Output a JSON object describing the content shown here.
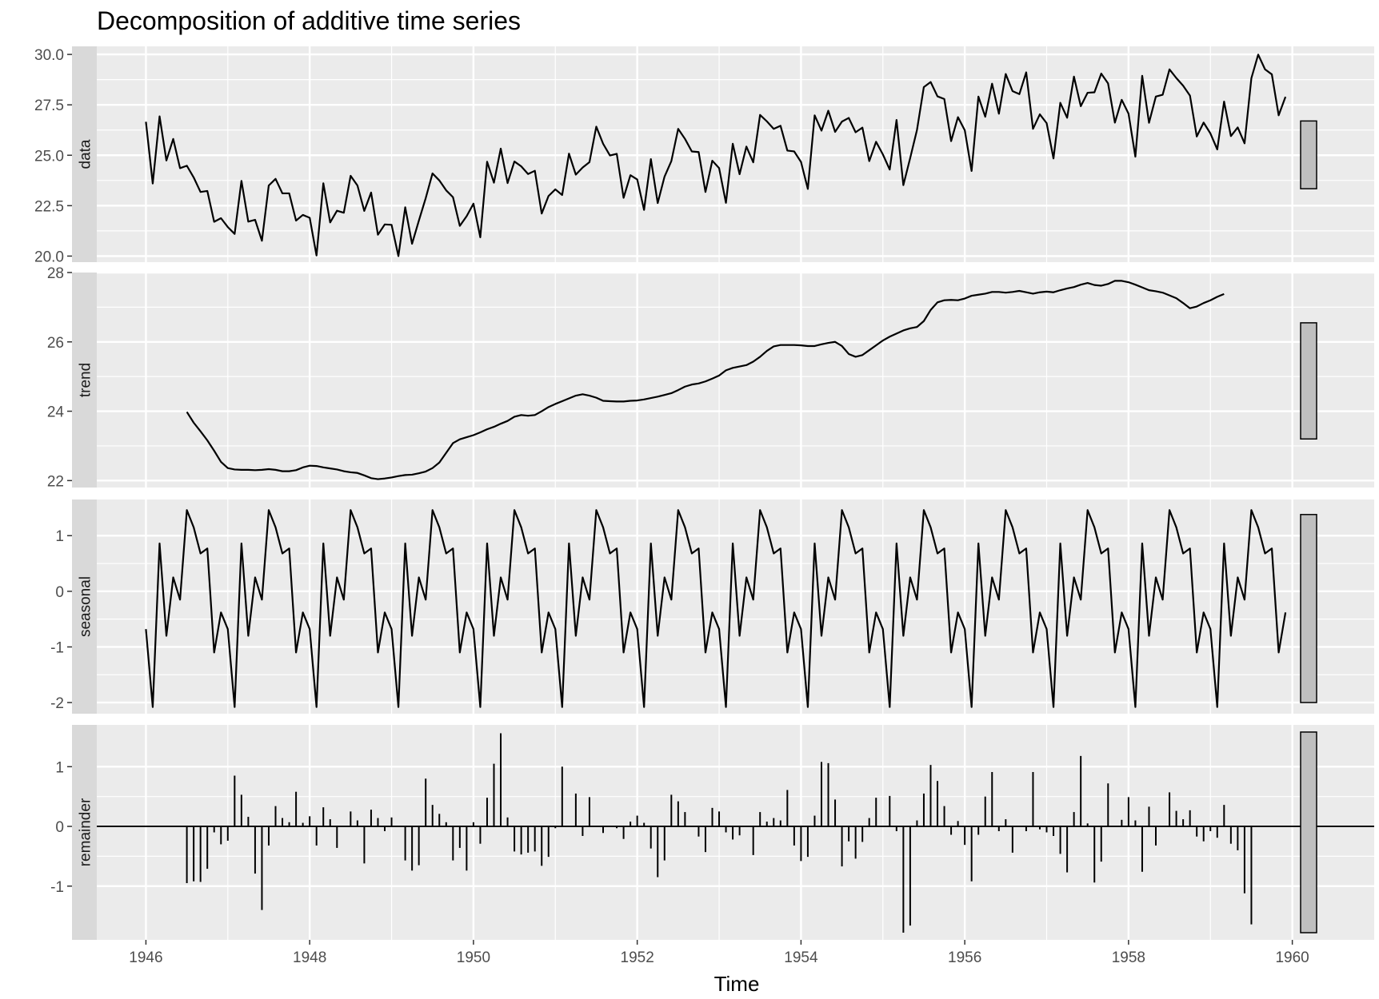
{
  "chart_data": {
    "type": "line",
    "title": "Decomposition of additive time series",
    "xlabel": "Time",
    "xlim": [
      1945.4,
      1961.0
    ],
    "x_ticks": [
      "1946",
      "1948",
      "1950",
      "1952",
      "1954",
      "1956",
      "1958",
      "1960"
    ],
    "x_tick_values": [
      1946,
      1948,
      1950,
      1952,
      1954,
      1956,
      1958,
      1960
    ],
    "colors": {
      "panel_background": "#ebebeb",
      "grid": "#ffffff",
      "strip_background": "#d9d9d9",
      "line": "#000000",
      "range_bar": "#bfbfbf"
    },
    "panels": [
      {
        "name": "data",
        "label": "data",
        "geom": "line",
        "ylim": [
          19.7,
          30.4
        ],
        "y_ticks": [
          "20.0",
          "22.5",
          "25.0",
          "27.5",
          "30.0"
        ],
        "y_tick_values": [
          20.0,
          22.5,
          25.0,
          27.5,
          30.0
        ],
        "range_bar": [
          23.34,
          26.7
        ],
        "x_start": 1946.0,
        "x_step": 0.0833333,
        "values": [
          26.66,
          23.6,
          26.93,
          24.74,
          25.81,
          24.36,
          24.48,
          23.9,
          23.18,
          23.23,
          21.7,
          21.88,
          21.44,
          21.1,
          23.73,
          21.71,
          21.8,
          20.76,
          23.5,
          23.83,
          23.11,
          23.11,
          21.76,
          22.04,
          21.9,
          20.03,
          23.61,
          21.67,
          22.25,
          22.15,
          23.98,
          23.5,
          22.24,
          23.15,
          21.06,
          21.57,
          21.55,
          20.0,
          22.42,
          20.61,
          21.76,
          22.87,
          24.1,
          23.75,
          23.26,
          22.92,
          21.5,
          21.98,
          22.6,
          20.93,
          24.68,
          23.64,
          25.33,
          23.62,
          24.69,
          24.45,
          24.07,
          24.23,
          22.11,
          22.98,
          23.31,
          23.03,
          25.08,
          24.04,
          24.39,
          24.66,
          26.42,
          25.57,
          24.99,
          25.07,
          22.89,
          24.01,
          23.8,
          22.29,
          24.81,
          22.63,
          23.94,
          24.71,
          26.31,
          25.81,
          25.19,
          25.16,
          23.18,
          24.73,
          24.36,
          22.64,
          25.57,
          24.06,
          25.43,
          24.65,
          27.0,
          26.68,
          26.31,
          26.46,
          25.23,
          25.19,
          24.67,
          23.33,
          26.98,
          26.22,
          27.21,
          26.16,
          26.67,
          26.85,
          26.14,
          26.37,
          24.71,
          25.67,
          25.04,
          24.29,
          26.75,
          23.52,
          24.86,
          26.26,
          28.38,
          28.63,
          27.92,
          27.79,
          25.7,
          26.89,
          26.24,
          24.22,
          27.91,
          26.91,
          28.55,
          27.06,
          29.03,
          28.18,
          28.03,
          29.11,
          26.31,
          27.03,
          26.59,
          24.84,
          27.6,
          26.86,
          28.9,
          27.43,
          28.1,
          28.12,
          29.05,
          28.56,
          26.62,
          27.75,
          27.06,
          24.93,
          28.94,
          26.61,
          27.91,
          28.0,
          29.26,
          28.83,
          28.45,
          27.96,
          25.93,
          26.62,
          26.08,
          25.29,
          27.66,
          25.95,
          26.38,
          25.59,
          28.82,
          29.99,
          29.26,
          29.01,
          26.98,
          27.9
        ]
      },
      {
        "name": "trend",
        "label": "trend",
        "geom": "line",
        "ylim": [
          21.8,
          28.0
        ],
        "y_ticks": [
          "22",
          "24",
          "26",
          "28"
        ],
        "y_tick_values": [
          22,
          24,
          26,
          28
        ],
        "range_bar": [
          23.2,
          26.55
        ],
        "x_start": 1946.5,
        "x_step": 0.0833333,
        "values": [
          23.98,
          23.67,
          23.42,
          23.16,
          22.86,
          22.54,
          22.36,
          22.32,
          22.31,
          22.31,
          22.3,
          22.31,
          22.33,
          22.31,
          22.27,
          22.27,
          22.3,
          22.38,
          22.43,
          22.42,
          22.38,
          22.35,
          22.32,
          22.27,
          22.24,
          22.22,
          22.15,
          22.07,
          22.04,
          22.06,
          22.09,
          22.13,
          22.16,
          22.17,
          22.21,
          22.26,
          22.36,
          22.52,
          22.8,
          23.08,
          23.19,
          23.25,
          23.31,
          23.39,
          23.48,
          23.55,
          23.64,
          23.72,
          23.84,
          23.89,
          23.87,
          23.89,
          24.0,
          24.12,
          24.21,
          24.29,
          24.37,
          24.45,
          24.49,
          24.45,
          24.39,
          24.3,
          24.29,
          24.28,
          24.28,
          24.3,
          24.31,
          24.34,
          24.38,
          24.42,
          24.47,
          24.52,
          24.61,
          24.71,
          24.77,
          24.8,
          24.86,
          24.94,
          25.03,
          25.18,
          25.25,
          25.29,
          25.33,
          25.43,
          25.57,
          25.74,
          25.87,
          25.91,
          25.91,
          25.91,
          25.9,
          25.88,
          25.88,
          25.93,
          25.97,
          26.0,
          25.88,
          25.65,
          25.57,
          25.62,
          25.76,
          25.9,
          26.04,
          26.15,
          26.24,
          26.33,
          26.39,
          26.43,
          26.6,
          26.92,
          27.14,
          27.2,
          27.21,
          27.2,
          27.25,
          27.33,
          27.36,
          27.39,
          27.44,
          27.44,
          27.42,
          27.44,
          27.47,
          27.43,
          27.39,
          27.43,
          27.45,
          27.43,
          27.49,
          27.54,
          27.58,
          27.65,
          27.7,
          27.64,
          27.62,
          27.67,
          27.76,
          27.76,
          27.72,
          27.65,
          27.57,
          27.49,
          27.46,
          27.42,
          27.34,
          27.26,
          27.12,
          26.97,
          27.02,
          27.12,
          27.2,
          27.3,
          27.38
        ]
      },
      {
        "name": "seasonal",
        "label": "seasonal",
        "geom": "line",
        "ylim": [
          -2.2,
          1.65
        ],
        "y_ticks": [
          "-2",
          "-1",
          "0",
          "1"
        ],
        "y_tick_values": [
          -2,
          -1,
          0,
          1
        ],
        "range_bar": [
          -2.0,
          1.38
        ],
        "x_start": 1946.0,
        "x_step": 0.0833333,
        "repeat": 14,
        "pattern": [
          -0.68,
          -2.08,
          0.86,
          -0.8,
          0.25,
          -0.15,
          1.46,
          1.15,
          0.68,
          0.77,
          -1.1,
          -0.38
        ]
      },
      {
        "name": "remainder",
        "label": "remainder",
        "geom": "spike",
        "ylim": [
          -1.9,
          1.7
        ],
        "y_ticks": [
          "-1",
          "0",
          "1"
        ],
        "y_tick_values": [
          -1,
          0,
          1
        ],
        "range_bar": [
          -1.78,
          1.58
        ],
        "x_start": 1946.5,
        "x_step": 0.0833333,
        "values": [
          -0.95,
          -0.92,
          -0.93,
          -0.71,
          -0.1,
          -0.3,
          -0.24,
          0.85,
          0.53,
          0.16,
          -0.79,
          -1.4,
          -0.32,
          0.34,
          0.14,
          0.07,
          0.58,
          0.06,
          0.17,
          -0.32,
          0.32,
          0.12,
          -0.36,
          0.0,
          0.25,
          0.1,
          -0.62,
          0.28,
          0.14,
          -0.08,
          0.15,
          0.0,
          -0.57,
          -0.74,
          -0.65,
          0.8,
          0.36,
          0.21,
          0.07,
          -0.57,
          -0.36,
          -0.74,
          0.07,
          -0.29,
          0.48,
          1.05,
          1.56,
          0.15,
          -0.42,
          -0.47,
          -0.44,
          -0.42,
          -0.66,
          -0.51,
          -0.03,
          1.0,
          0.0,
          0.55,
          -0.16,
          0.49,
          0.0,
          -0.11,
          0.0,
          -0.03,
          -0.21,
          0.08,
          0.18,
          0.06,
          -0.37,
          -0.85,
          -0.57,
          0.53,
          0.42,
          0.24,
          0.0,
          -0.17,
          -0.43,
          0.31,
          0.25,
          -0.1,
          -0.22,
          -0.15,
          0.0,
          -0.48,
          0.24,
          0.08,
          0.14,
          0.1,
          0.61,
          -0.32,
          -0.58,
          -0.51,
          0.18,
          1.08,
          1.06,
          0.45,
          -0.67,
          -0.25,
          -0.54,
          -0.26,
          0.14,
          0.48,
          0.0,
          0.51,
          -0.08,
          -1.78,
          -1.66,
          0.1,
          0.55,
          1.03,
          0.76,
          0.34,
          -0.14,
          0.09,
          -0.31,
          -0.92,
          -0.14,
          0.5,
          0.91,
          -0.08,
          0.12,
          -0.44,
          0.0,
          -0.08,
          0.91,
          -0.05,
          -0.1,
          -0.16,
          -0.46,
          -0.77,
          0.24,
          1.18,
          0.05,
          -0.94,
          -0.59,
          0.72,
          0.0,
          0.11,
          0.49,
          0.1,
          -0.76,
          0.33,
          -0.32,
          0.0,
          0.57,
          0.26,
          0.12,
          0.27,
          -0.17,
          -0.25,
          -0.08,
          -0.19,
          0.36,
          -0.29,
          -0.4,
          -1.12,
          -1.64
        ]
      }
    ]
  }
}
